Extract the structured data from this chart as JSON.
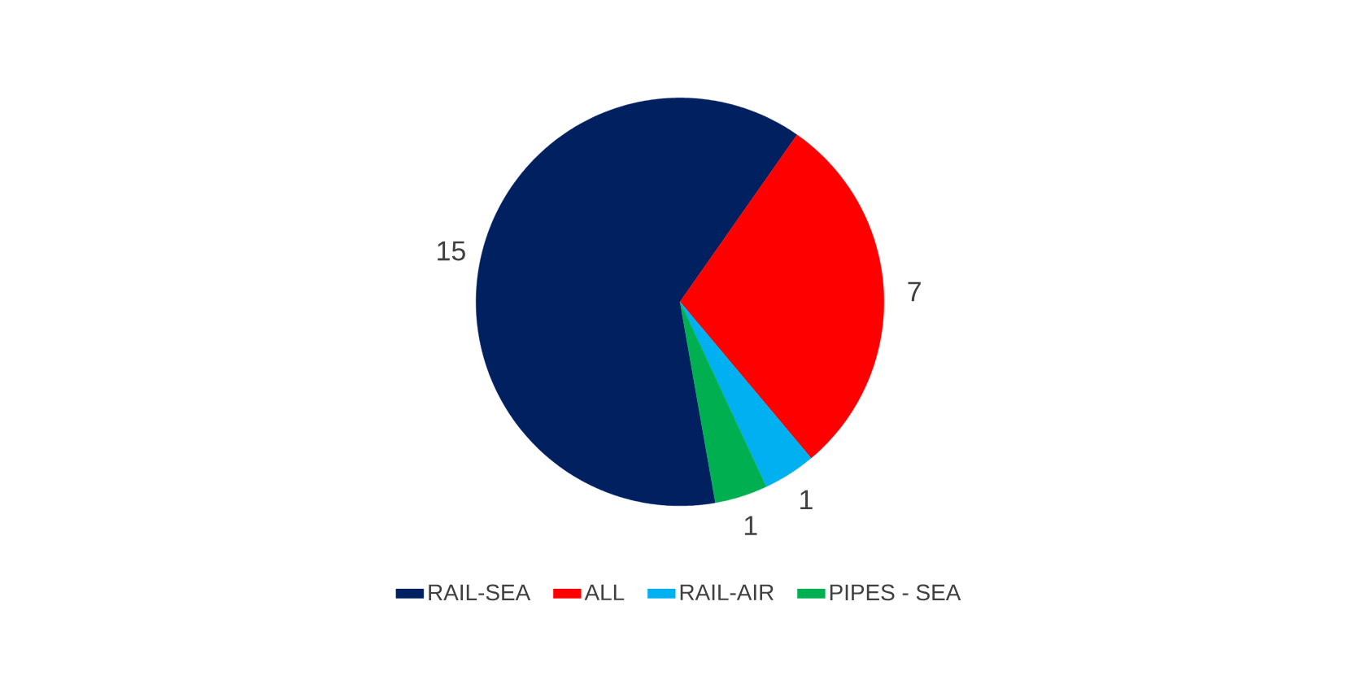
{
  "chart_data": {
    "type": "pie",
    "categories": [
      "RAIL-SEA",
      "ALL",
      "RAIL-AIR",
      "PIPES - SEA"
    ],
    "values": [
      15,
      7,
      1,
      1
    ],
    "colors": [
      "#002060",
      "#ff0000",
      "#00b0f0",
      "#00b050"
    ],
    "data_labels": true,
    "legend": "bottom"
  }
}
